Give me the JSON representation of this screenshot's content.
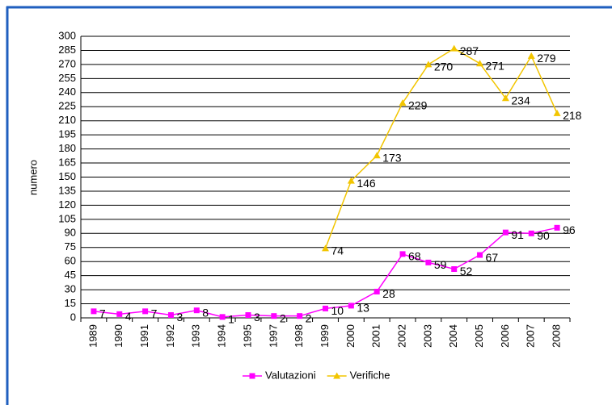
{
  "chart_data": {
    "type": "line",
    "y_label": "numero",
    "categories": [
      "1989",
      "1990",
      "1991",
      "1992",
      "1993",
      "1994",
      "1995",
      "1997",
      "1998",
      "1999",
      "2000",
      "2001",
      "2002",
      "2003",
      "2004",
      "2005",
      "2006",
      "2007",
      "2008"
    ],
    "series": [
      {
        "name": "Valutazioni",
        "color": "#ff00ff",
        "marker": "square",
        "values": [
          7,
          4,
          7,
          3,
          8,
          1,
          3,
          2,
          2,
          10,
          13,
          28,
          68,
          59,
          52,
          67,
          91,
          90,
          96
        ]
      },
      {
        "name": "Verifiche",
        "color": "#f2c500",
        "marker": "triangle",
        "values": [
          null,
          null,
          null,
          null,
          null,
          null,
          null,
          null,
          null,
          74,
          146,
          173,
          229,
          270,
          287,
          271,
          234,
          279,
          218
        ]
      }
    ],
    "ylim": [
      0,
      300
    ],
    "yticks": [
      0,
      15,
      30,
      45,
      60,
      75,
      90,
      105,
      120,
      135,
      150,
      165,
      180,
      195,
      210,
      225,
      240,
      255,
      270,
      285,
      300
    ],
    "grid": true,
    "legend": "bottom"
  }
}
